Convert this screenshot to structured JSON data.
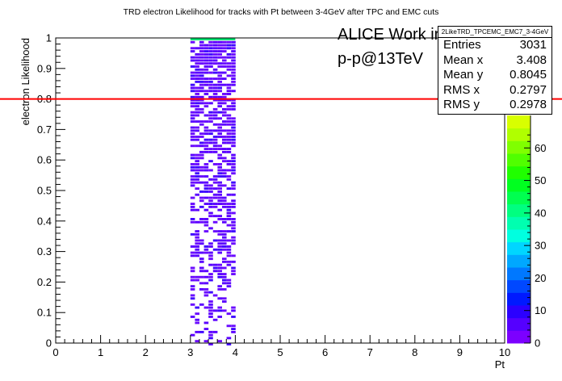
{
  "chart_data": {
    "type": "heatmap",
    "title": "TRD electron Likelihood for tracks with Pt between 3-4GeV after TPC and EMC cuts",
    "xlabel": "Pt",
    "ylabel": "electron Likelihood",
    "xlim": [
      0,
      10
    ],
    "ylim": [
      0,
      1
    ],
    "x_ticks": [
      "0",
      "1",
      "2",
      "3",
      "4",
      "5",
      "6",
      "7",
      "8",
      "9",
      "10"
    ],
    "y_ticks": [
      "0",
      "0.1",
      "0.2",
      "0.3",
      "0.4",
      "0.5",
      "0.6",
      "0.7",
      "0.8",
      "0.9",
      "1"
    ],
    "filled_x_range": [
      3,
      4
    ],
    "cut_line_y": 0.8,
    "cut_line_color": "#ff0000",
    "colorbar_ticks": [
      "0",
      "10",
      "20",
      "30",
      "40",
      "50",
      "60"
    ],
    "colorbar_max": 70,
    "peak_bin_y": 1.0,
    "grid": false
  },
  "stats": {
    "name": "2LikeTRD_TPCEMC_EMC7_3-4GeV",
    "rows": [
      {
        "label": "Entries",
        "value": "3031"
      },
      {
        "label": "Mean x",
        "value": "3.408"
      },
      {
        "label": "Mean y",
        "value": "0.8045"
      },
      {
        "label": "RMS x",
        "value": "0.2797"
      },
      {
        "label": "RMS y",
        "value": "0.2978"
      }
    ]
  },
  "watermark": {
    "line1": "ALICE Work in Progress",
    "line2": "p-p@13TeV"
  }
}
